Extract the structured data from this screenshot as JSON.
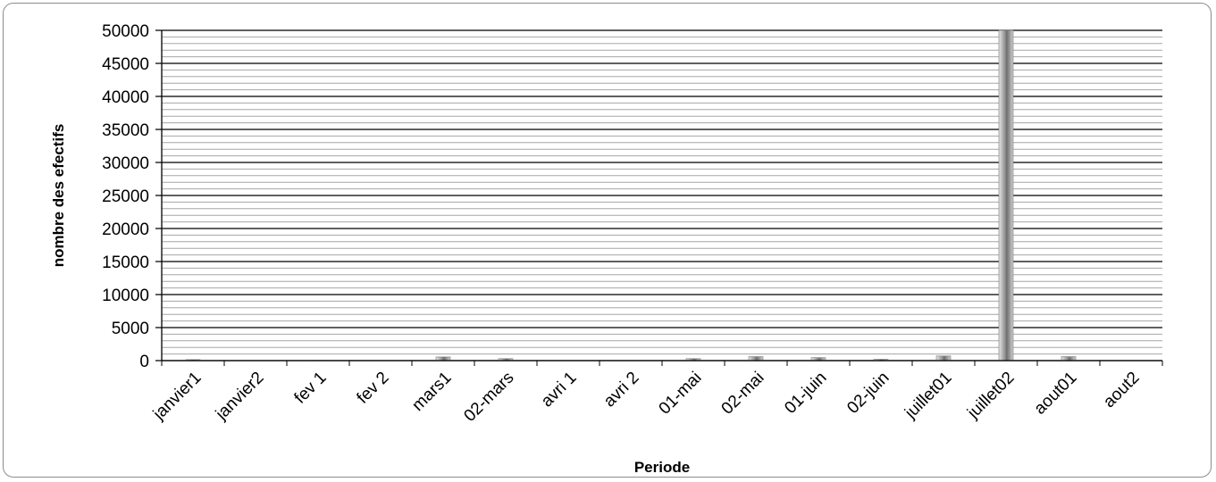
{
  "chart_data": {
    "type": "bar",
    "title": "",
    "xlabel": "Periode",
    "ylabel": "nombre des efectifs",
    "ylim": [
      0,
      50000
    ],
    "ytick_step": 5000,
    "minor_grid_step": 1000,
    "grid": true,
    "legend": "none",
    "categories": [
      "janvier1",
      "janvier2",
      "fev 1",
      "fev 2",
      "mars1",
      "02-mars",
      "avri 1",
      "avri 2",
      "01-mai",
      "02-mai",
      "01-juin",
      "02-juin",
      "juillet01",
      "juillet02",
      "aout01",
      "aout2"
    ],
    "series": [
      {
        "values": [
          150,
          20,
          30,
          10,
          550,
          300,
          20,
          10,
          300,
          600,
          450,
          200,
          700,
          50000,
          600,
          20
        ]
      }
    ],
    "colors": {
      "bar": "#9a9a9a",
      "grid_major": "#000000",
      "grid_minor": "#a6a6a6",
      "border": "#8c8c8c"
    }
  }
}
